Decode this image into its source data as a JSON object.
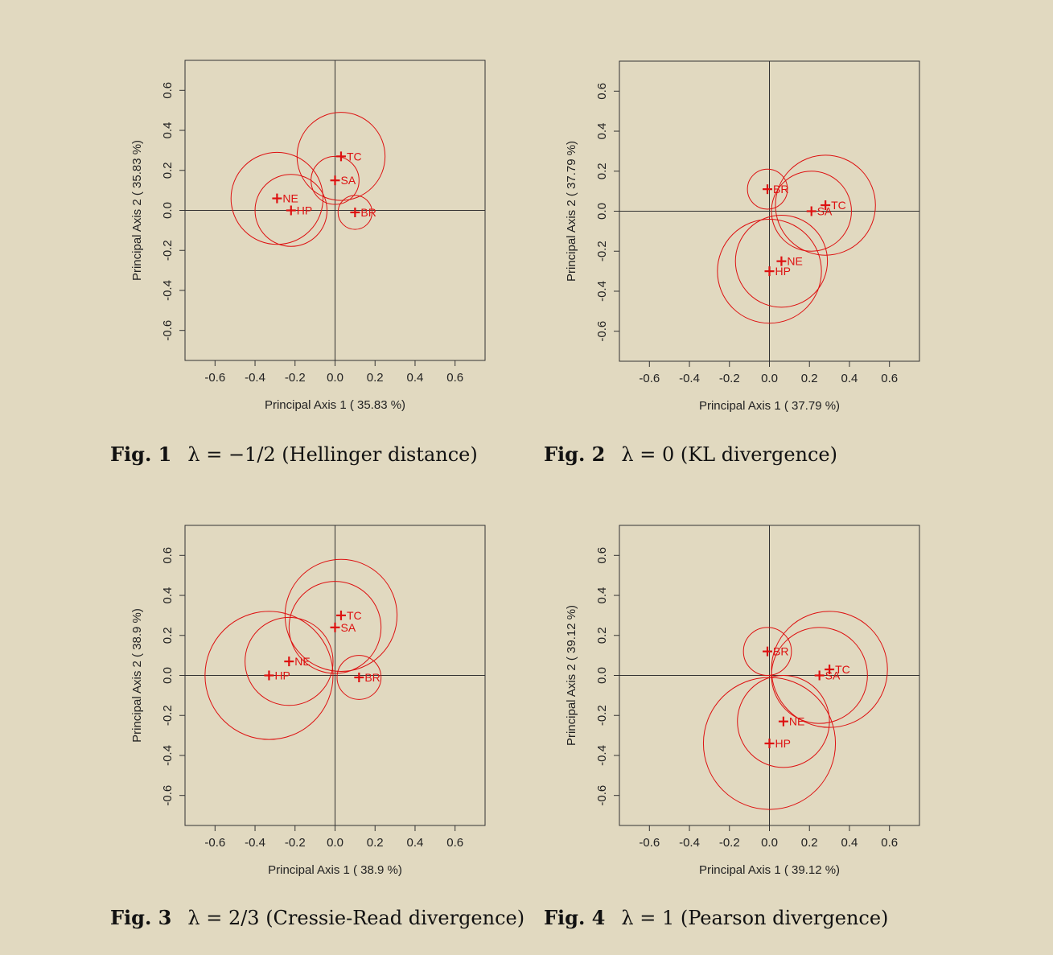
{
  "chart_data": [
    {
      "type": "scatter",
      "caption_fig": "Fig. 1",
      "caption_text": "λ = −1/2 (Hellinger distance)",
      "xlabel": "Principal Axis 1 ( 35.83 %)",
      "ylabel": "Principal Axis 2 ( 35.83 %)",
      "xlim": [
        -0.75,
        0.75
      ],
      "ylim": [
        -0.75,
        0.75
      ],
      "xticks": [
        "-0.6",
        "-0.4",
        "-0.2",
        "0.0",
        "0.2",
        "0.4",
        "0.6"
      ],
      "yticks": [
        "-0.6",
        "-0.4",
        "-0.2",
        "0.0",
        "0.2",
        "0.4",
        "0.6"
      ],
      "color": "#dd1111",
      "points": [
        {
          "label": "TC",
          "x": 0.03,
          "y": 0.27,
          "cx": 0.03,
          "cy": 0.27,
          "r": 0.22
        },
        {
          "label": "SA",
          "x": 0.0,
          "y": 0.15,
          "cx": 0.0,
          "cy": 0.15,
          "r": 0.12
        },
        {
          "label": "NE",
          "x": -0.29,
          "y": 0.06,
          "cx": -0.29,
          "cy": 0.06,
          "r": 0.23
        },
        {
          "label": "HP",
          "x": -0.22,
          "y": 0.0,
          "cx": -0.22,
          "cy": 0.0,
          "r": 0.18
        },
        {
          "label": "BR",
          "x": 0.1,
          "y": -0.01,
          "cx": 0.1,
          "cy": -0.01,
          "r": 0.085
        }
      ]
    },
    {
      "type": "scatter",
      "caption_fig": "Fig. 2",
      "caption_text": "λ = 0 (KL divergence)",
      "xlabel": "Principal Axis 1 ( 37.79 %)",
      "ylabel": "Principal Axis 2 ( 37.79 %)",
      "xlim": [
        -0.75,
        0.75
      ],
      "ylim": [
        -0.75,
        0.75
      ],
      "xticks": [
        "-0.6",
        "-0.4",
        "-0.2",
        "0.0",
        "0.2",
        "0.4",
        "0.6"
      ],
      "yticks": [
        "-0.6",
        "-0.4",
        "-0.2",
        "0.0",
        "0.2",
        "0.4",
        "0.6"
      ],
      "color": "#dd1111",
      "points": [
        {
          "label": "BR",
          "x": -0.01,
          "y": 0.11,
          "cx": -0.01,
          "cy": 0.11,
          "r": 0.1
        },
        {
          "label": "TC",
          "x": 0.28,
          "y": 0.03,
          "cx": 0.28,
          "cy": 0.03,
          "r": 0.25
        },
        {
          "label": "SA",
          "x": 0.21,
          "y": 0.0,
          "cx": 0.21,
          "cy": 0.0,
          "r": 0.2
        },
        {
          "label": "NE",
          "x": 0.06,
          "y": -0.25,
          "cx": 0.06,
          "cy": -0.25,
          "r": 0.23
        },
        {
          "label": "HP",
          "x": 0.0,
          "y": -0.3,
          "cx": 0.0,
          "cy": -0.3,
          "r": 0.26
        }
      ]
    },
    {
      "type": "scatter",
      "caption_fig": "Fig. 3",
      "caption_text": "λ = 2/3 (Cressie-Read divergence)",
      "xlabel": "Principal Axis 1 ( 38.9 %)",
      "ylabel": "Principal Axis 2 ( 38.9 %)",
      "xlim": [
        -0.75,
        0.75
      ],
      "ylim": [
        -0.75,
        0.75
      ],
      "xticks": [
        "-0.6",
        "-0.4",
        "-0.2",
        "0.0",
        "0.2",
        "0.4",
        "0.6"
      ],
      "yticks": [
        "-0.6",
        "-0.4",
        "-0.2",
        "0.0",
        "0.2",
        "0.4",
        "0.6"
      ],
      "color": "#dd1111",
      "points": [
        {
          "label": "TC",
          "x": 0.03,
          "y": 0.3,
          "cx": 0.03,
          "cy": 0.3,
          "r": 0.28
        },
        {
          "label": "SA",
          "x": 0.0,
          "y": 0.24,
          "cx": 0.0,
          "cy": 0.24,
          "r": 0.23
        },
        {
          "label": "NE",
          "x": -0.23,
          "y": 0.07,
          "cx": -0.23,
          "cy": 0.07,
          "r": 0.22
        },
        {
          "label": "HP",
          "x": -0.33,
          "y": 0.0,
          "cx": -0.33,
          "cy": 0.0,
          "r": 0.32
        },
        {
          "label": "BR",
          "x": 0.12,
          "y": -0.01,
          "cx": 0.12,
          "cy": -0.01,
          "r": 0.11
        }
      ]
    },
    {
      "type": "scatter",
      "caption_fig": "Fig. 4",
      "caption_text": "λ = 1 (Pearson divergence)",
      "xlabel": "Principal Axis 1 ( 39.12 %)",
      "ylabel": "Principal Axis 2 ( 39.12 %)",
      "xlim": [
        -0.75,
        0.75
      ],
      "ylim": [
        -0.75,
        0.75
      ],
      "xticks": [
        "-0.6",
        "-0.4",
        "-0.2",
        "0.0",
        "0.2",
        "0.4",
        "0.6"
      ],
      "yticks": [
        "-0.6",
        "-0.4",
        "-0.2",
        "0.0",
        "0.2",
        "0.4",
        "0.6"
      ],
      "color": "#dd1111",
      "points": [
        {
          "label": "BR",
          "x": -0.01,
          "y": 0.12,
          "cx": -0.01,
          "cy": 0.12,
          "r": 0.12
        },
        {
          "label": "TC",
          "x": 0.3,
          "y": 0.03,
          "cx": 0.3,
          "cy": 0.03,
          "r": 0.29
        },
        {
          "label": "SA",
          "x": 0.25,
          "y": 0.0,
          "cx": 0.25,
          "cy": 0.0,
          "r": 0.24
        },
        {
          "label": "NE",
          "x": 0.07,
          "y": -0.23,
          "cx": 0.07,
          "cy": -0.23,
          "r": 0.23
        },
        {
          "label": "HP",
          "x": 0.0,
          "y": -0.34,
          "cx": 0.0,
          "cy": -0.34,
          "r": 0.33
        }
      ]
    }
  ]
}
